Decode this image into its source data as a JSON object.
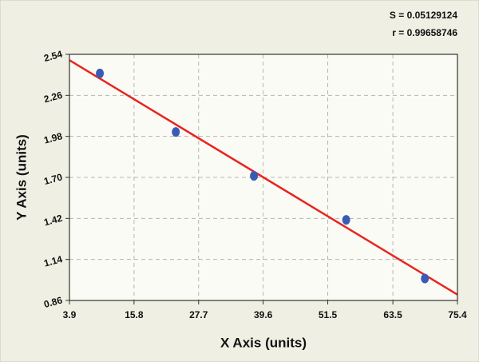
{
  "chart_data": {
    "type": "scatter",
    "xlabel": "X Axis (units)",
    "ylabel": "Y Axis (units)",
    "annotations": [
      "S = 0.05129124",
      "r = 0.99658746"
    ],
    "x": [
      9.5,
      23.5,
      37.9,
      54.9,
      69.4
    ],
    "values": [
      2.41,
      2.01,
      1.71,
      1.41,
      1.01
    ],
    "color": "#3a5bb5",
    "fit": {
      "x": [
        3.9,
        75.4
      ],
      "values": [
        2.5,
        0.9
      ],
      "color": "#e8251f"
    },
    "xlim": [
      3.9,
      75.4
    ],
    "xticks": [
      3.9,
      15.8,
      27.7,
      39.6,
      51.5,
      63.5,
      75.4
    ],
    "ylim": [
      0.86,
      2.54
    ],
    "yticks": [
      0.86,
      1.14,
      1.42,
      {
        "value": 1.7,
        "label": "1.70"
      },
      1.98,
      2.26,
      2.54
    ],
    "grid": true
  }
}
